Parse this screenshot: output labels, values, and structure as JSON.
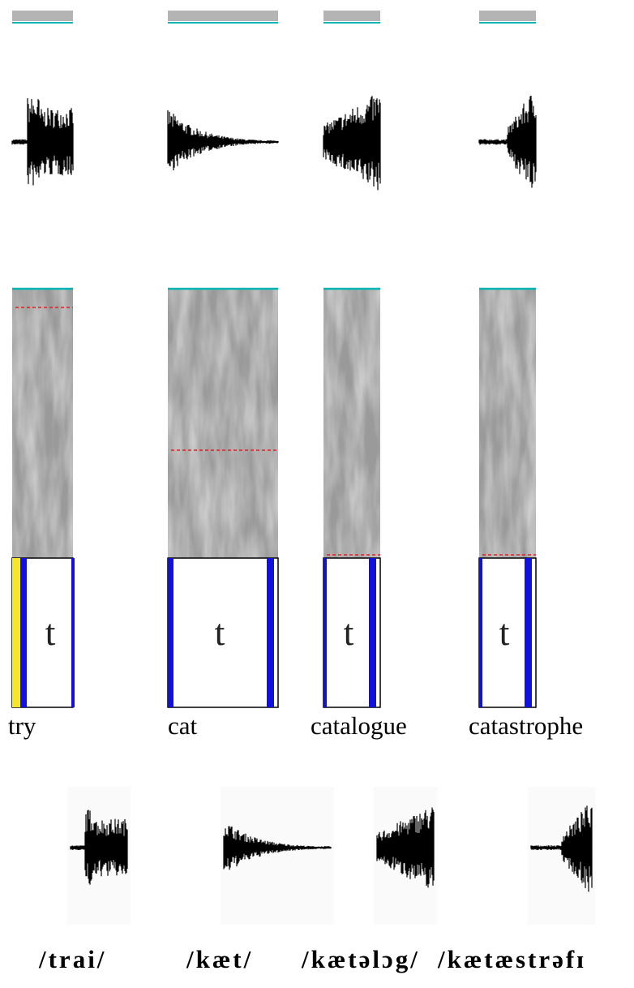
{
  "columns": [
    {
      "phone": "t",
      "word": "try",
      "ipa": "/trai/"
    },
    {
      "phone": "t",
      "word": "cat",
      "ipa": "/kæt/"
    },
    {
      "phone": "t",
      "word": "catalogue",
      "ipa": "/kætəlɔg/"
    },
    {
      "phone": "t",
      "word": "catastrophe",
      "ipa": "/kætæstrəfɪ"
    }
  ]
}
